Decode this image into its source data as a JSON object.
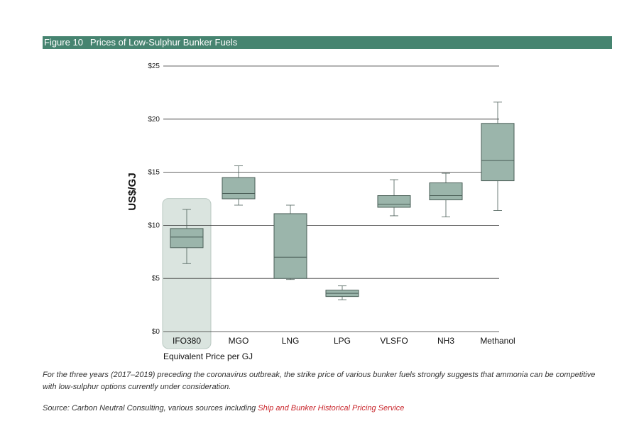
{
  "figure": {
    "label": "Figure 10",
    "title": "Prices of Low-Sulphur Bunker Fuels"
  },
  "caption": "For the three years (2017–2019) preceding the coronavirus outbreak, the strike price of various bunker fuels strongly suggests that ammonia can be competitive with low-sulphur options currently under consideration.",
  "source": {
    "prefix": "Source: Carbon Neutral Consulting, various sources including ",
    "link": "Ship and Bunker Historical Pricing Service"
  },
  "colors": {
    "header": "#468470",
    "box_fill": "#9bb5ab",
    "box_stroke": "#4a5e57",
    "highlight": "#dae4df",
    "gridline": "#333333",
    "source_link": "#c9262c"
  },
  "chart_data": {
    "type": "box",
    "title": "",
    "xlabel": "Equivalent Price per GJ",
    "ylabel": "US$/GJ",
    "ylim": [
      0,
      25
    ],
    "yticks": [
      0,
      5,
      10,
      15,
      20,
      25
    ],
    "ytick_labels": [
      "$0",
      "$5",
      "$10",
      "$15",
      "$20",
      "$25"
    ],
    "grid": true,
    "highlighted_category": "IFO380",
    "categories": [
      "IFO380",
      "MGO",
      "LNG",
      "LPG",
      "VLSFO",
      "NH3",
      "Methanol"
    ],
    "boxes": [
      {
        "category": "IFO380",
        "whisker_low": 6.4,
        "q1": 7.9,
        "median": 8.9,
        "q3": 9.7,
        "whisker_high": 11.5
      },
      {
        "category": "MGO",
        "whisker_low": 11.9,
        "q1": 12.5,
        "median": 13.0,
        "q3": 14.5,
        "whisker_high": 15.6
      },
      {
        "category": "LNG",
        "whisker_low": 4.9,
        "q1": 5.0,
        "median": 7.0,
        "q3": 11.1,
        "whisker_high": 11.9
      },
      {
        "category": "LPG",
        "whisker_low": 3.0,
        "q1": 3.3,
        "median": 3.6,
        "q3": 3.9,
        "whisker_high": 4.3
      },
      {
        "category": "VLSFO",
        "whisker_low": 10.9,
        "q1": 11.7,
        "median": 12.0,
        "q3": 12.8,
        "whisker_high": 14.3
      },
      {
        "category": "NH3",
        "whisker_low": 10.8,
        "q1": 12.4,
        "median": 12.8,
        "q3": 14.0,
        "whisker_high": 14.9
      },
      {
        "category": "Methanol",
        "whisker_low": 11.4,
        "q1": 14.2,
        "median": 16.1,
        "q3": 19.6,
        "whisker_high": 21.6
      }
    ]
  }
}
